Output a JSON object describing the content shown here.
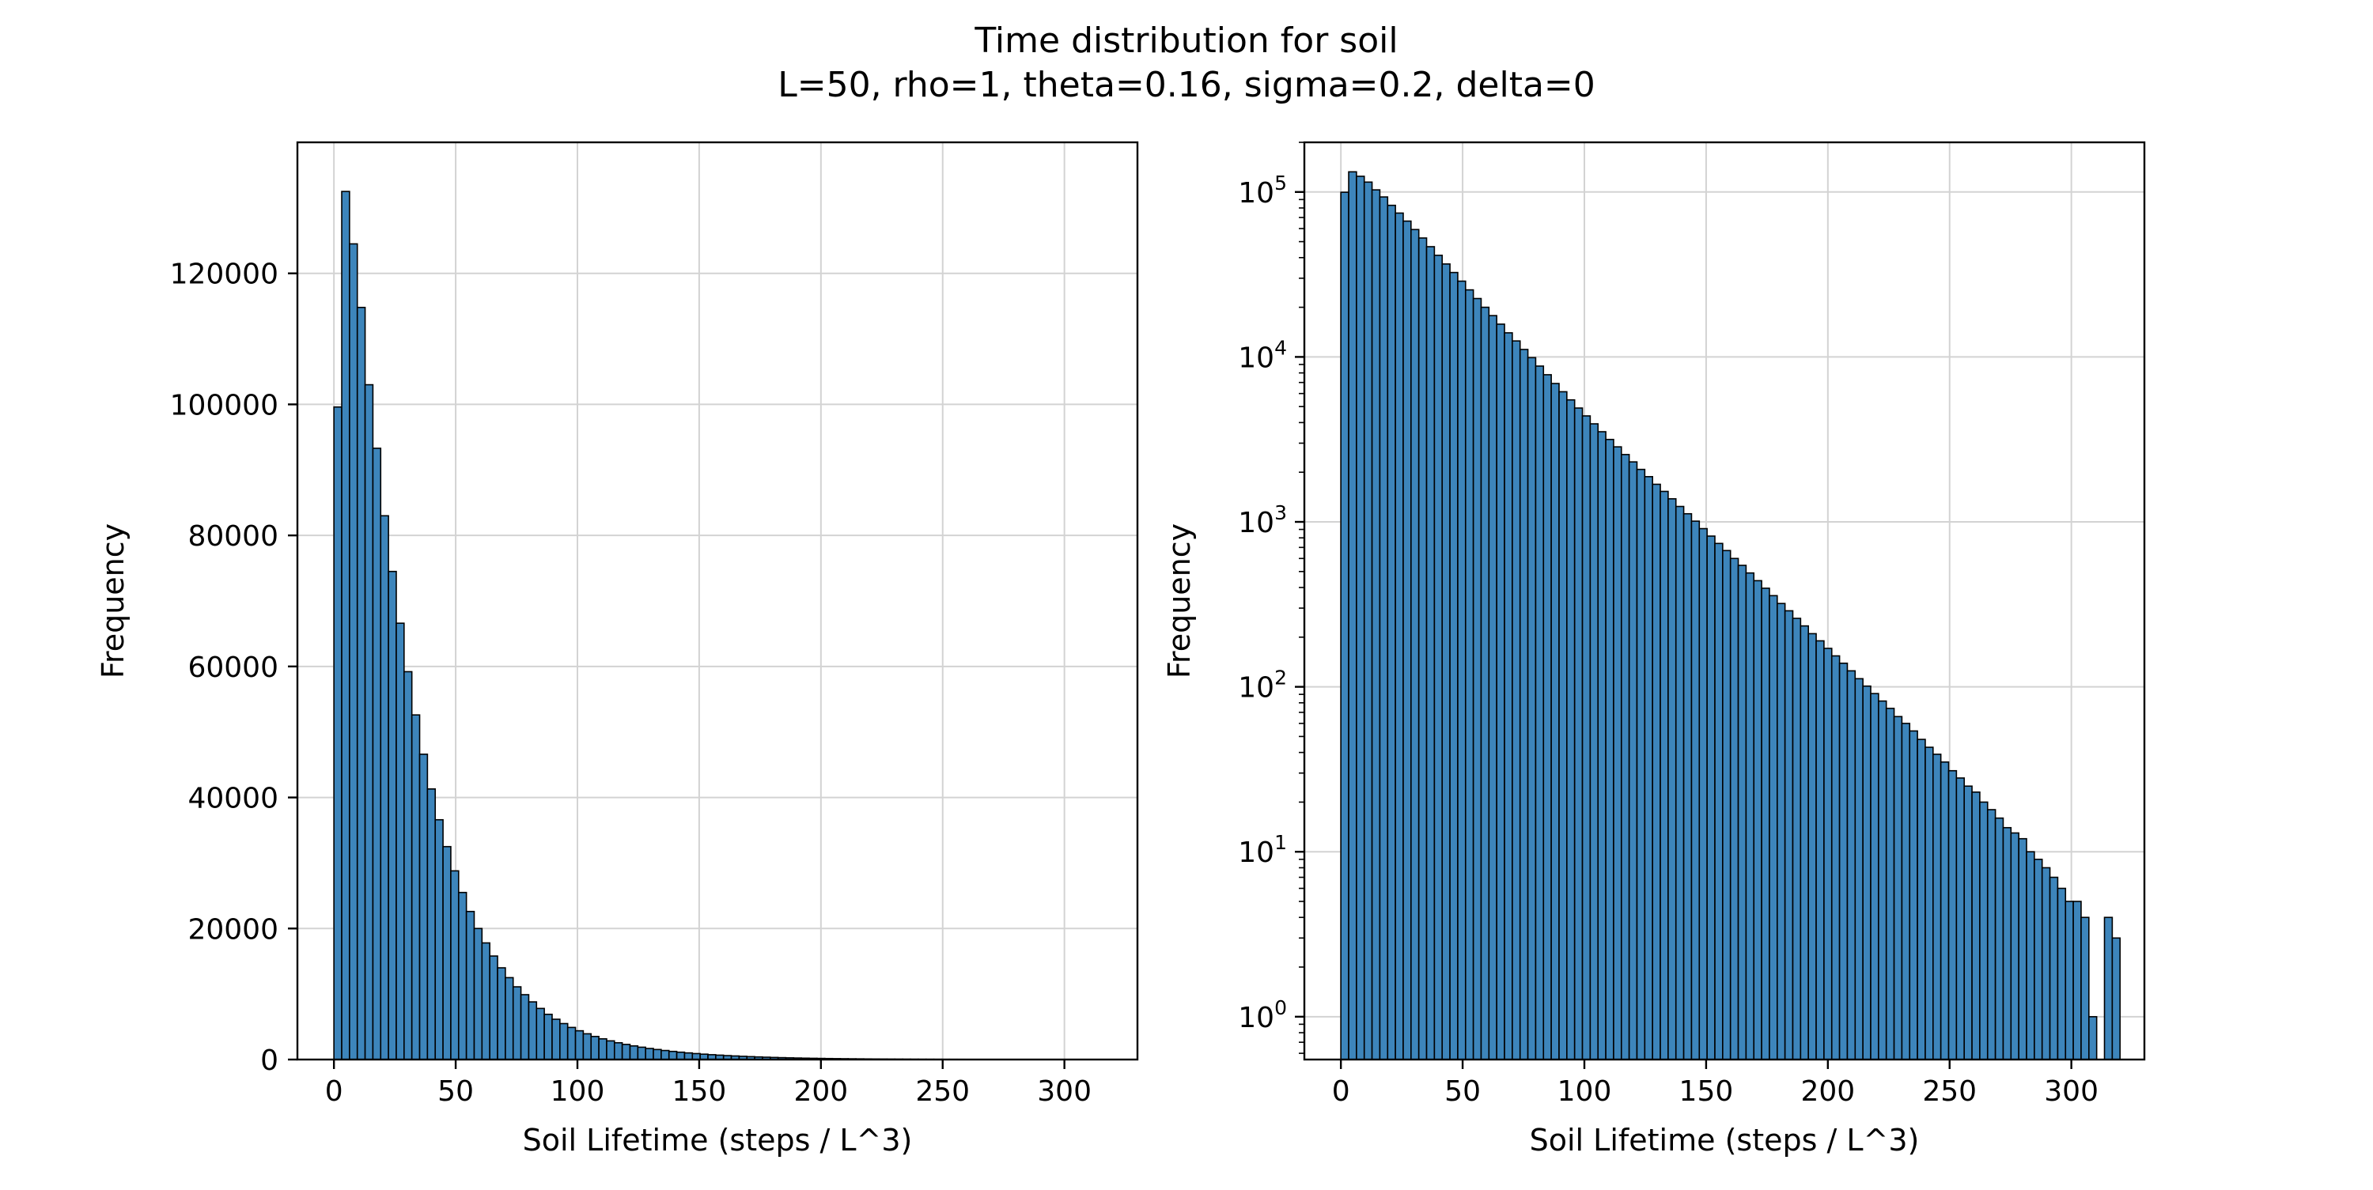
{
  "figure": {
    "title_line1": "Time distribution for soil",
    "title_line2": "L=50, rho=1, theta=0.16, sigma=0.2, delta=0"
  },
  "colors": {
    "bar_fill": "#3d85bb",
    "bar_edge": "#000000",
    "grid": "#d3d3d3",
    "axes": "#000000",
    "background": "#ffffff"
  },
  "chart_data": [
    {
      "type": "bar",
      "subtype": "histogram",
      "xlabel": "Soil Lifetime (steps / L^3)",
      "ylabel": "Frequency",
      "xlim": [
        -15,
        330
      ],
      "ylim": [
        0,
        140000
      ],
      "yscale": "linear",
      "grid": true,
      "xticks": [
        0,
        50,
        100,
        150,
        200,
        250,
        300
      ],
      "yticks": [
        0,
        20000,
        40000,
        60000,
        80000,
        100000,
        120000
      ],
      "bin_width": 3.2,
      "bin_start": 0,
      "values": [
        99600,
        132500,
        124500,
        114800,
        103000,
        93300,
        83000,
        74500,
        66600,
        59200,
        52600,
        46600,
        41300,
        36600,
        32500,
        28800,
        25500,
        22600,
        20000,
        17800,
        15800,
        14000,
        12500,
        11100,
        9900,
        8800,
        7800,
        6900,
        6150,
        5490,
        4900,
        4390,
        3930,
        3520,
        3160,
        2850,
        2560,
        2310,
        2080,
        1880,
        1690,
        1530,
        1380,
        1240,
        1120,
        1010,
        910,
        820,
        740,
        670,
        600,
        545,
        490,
        440,
        396,
        357,
        320,
        289,
        260,
        234,
        210,
        190,
        171,
        154,
        139,
        125,
        112,
        101,
        91,
        82,
        74,
        66,
        60,
        54,
        48,
        43,
        39,
        35,
        31,
        28,
        25,
        23,
        20,
        18,
        16,
        14,
        13,
        12,
        10,
        9,
        8,
        7,
        6,
        5,
        5,
        4,
        1,
        0,
        4,
        3
      ]
    },
    {
      "type": "bar",
      "subtype": "histogram",
      "xlabel": "Soil Lifetime (steps / L^3)",
      "ylabel": "Frequency",
      "xlim": [
        -15,
        330
      ],
      "ylim": [
        0.55,
        200000
      ],
      "yscale": "log",
      "grid": true,
      "xticks": [
        0,
        50,
        100,
        150,
        200,
        250,
        300
      ],
      "yticks": [
        "10^0",
        "10^1",
        "10^2",
        "10^3",
        "10^4",
        "10^5"
      ],
      "bin_width": 3.2,
      "bin_start": 0,
      "values": [
        99600,
        132500,
        124500,
        114800,
        103000,
        93300,
        83000,
        74500,
        66600,
        59200,
        52600,
        46600,
        41300,
        36600,
        32500,
        28800,
        25500,
        22600,
        20000,
        17800,
        15800,
        14000,
        12500,
        11100,
        9900,
        8800,
        7800,
        6900,
        6150,
        5490,
        4900,
        4390,
        3930,
        3520,
        3160,
        2850,
        2560,
        2310,
        2080,
        1880,
        1690,
        1530,
        1380,
        1240,
        1120,
        1010,
        910,
        820,
        740,
        670,
        600,
        545,
        490,
        440,
        396,
        357,
        320,
        289,
        260,
        234,
        210,
        190,
        171,
        154,
        139,
        125,
        112,
        101,
        91,
        82,
        74,
        66,
        60,
        54,
        48,
        43,
        39,
        35,
        31,
        28,
        25,
        23,
        20,
        18,
        16,
        14,
        13,
        12,
        10,
        9,
        8,
        7,
        6,
        5,
        5,
        4,
        1,
        0,
        4,
        3
      ]
    }
  ]
}
